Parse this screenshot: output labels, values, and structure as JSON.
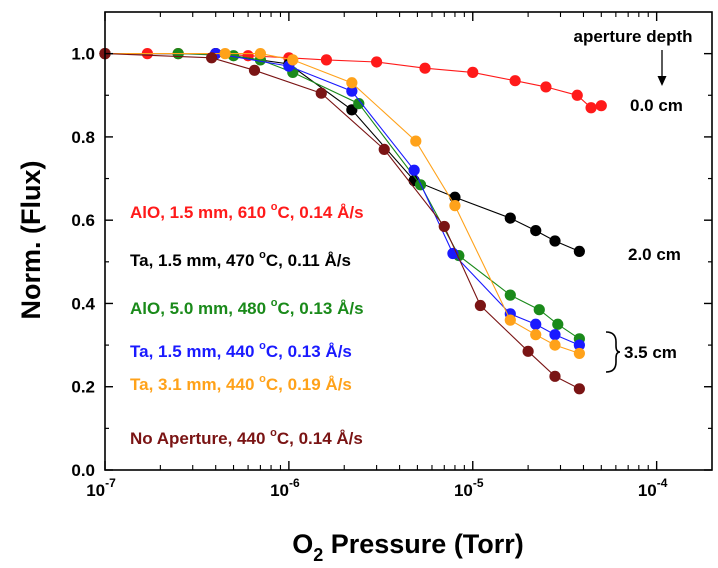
{
  "chart_data": {
    "type": "scatter",
    "x_scale": "log",
    "xlim": [
      1e-07,
      0.0002
    ],
    "ylim": [
      0.0,
      1.1
    ],
    "xlabel_parts": {
      "main": "O",
      "sub": "2",
      "rest": " Pressure (Torr)"
    },
    "ylabel": "Norm. (Flux)",
    "x_ticks": [
      {
        "value": 1e-07,
        "base": "10",
        "exp": "-7"
      },
      {
        "value": 1e-06,
        "base": "10",
        "exp": "-6"
      },
      {
        "value": 1e-05,
        "base": "10",
        "exp": "-5"
      },
      {
        "value": 0.0001,
        "base": "10",
        "exp": "-4"
      }
    ],
    "y_ticks": [
      "0.0",
      "0.2",
      "0.4",
      "0.6",
      "0.8",
      "1.0"
    ],
    "grid": false,
    "legend_placement": "left",
    "series": [
      {
        "label_parts": {
          "pre": "AlO, 1.5 mm, 610 ",
          "sup": "o",
          "post": "C, 0.14 Å/s"
        },
        "color": "#ff1a1a",
        "points": [
          [
            1e-07,
            1.0
          ],
          [
            1.7e-07,
            1.0
          ],
          [
            2.5e-07,
            1.0
          ],
          [
            4e-07,
            1.0
          ],
          [
            6e-07,
            0.995
          ],
          [
            1e-06,
            0.99
          ],
          [
            1.6e-06,
            0.985
          ],
          [
            3e-06,
            0.98
          ],
          [
            5.5e-06,
            0.965
          ],
          [
            1e-05,
            0.955
          ],
          [
            1.7e-05,
            0.935
          ],
          [
            2.5e-05,
            0.92
          ],
          [
            3.7e-05,
            0.9
          ],
          [
            4.4e-05,
            0.87
          ],
          [
            5e-05,
            0.875
          ]
        ]
      },
      {
        "label_parts": {
          "pre": "Ta, 1.5 mm, 470 ",
          "sup": "o",
          "post": "C, 0.11 Å/s"
        },
        "color": "#000000",
        "points": [
          [
            1e-07,
            1.0
          ],
          [
            4e-07,
            1.0
          ],
          [
            1e-06,
            0.975
          ],
          [
            2.2e-06,
            0.865
          ],
          [
            4.8e-06,
            0.695
          ],
          [
            8e-06,
            0.655
          ],
          [
            1.6e-05,
            0.605
          ],
          [
            2.2e-05,
            0.575
          ],
          [
            2.8e-05,
            0.55
          ],
          [
            3.8e-05,
            0.525
          ]
        ]
      },
      {
        "label_parts": {
          "pre": "AlO, 5.0 mm, 480 ",
          "sup": "o",
          "post": "C, 0.13 Å/s"
        },
        "color": "#1a8a1a",
        "points": [
          [
            1e-07,
            1.0
          ],
          [
            2.5e-07,
            1.0
          ],
          [
            5e-07,
            0.995
          ],
          [
            7e-07,
            0.985
          ],
          [
            1.05e-06,
            0.955
          ],
          [
            2.4e-06,
            0.88
          ],
          [
            5.2e-06,
            0.685
          ],
          [
            8.4e-06,
            0.515
          ],
          [
            1.6e-05,
            0.42
          ],
          [
            2.3e-05,
            0.385
          ],
          [
            2.9e-05,
            0.35
          ],
          [
            3.8e-05,
            0.315
          ]
        ]
      },
      {
        "label_parts": {
          "pre": "Ta, 1.5 mm, 440 ",
          "sup": "o",
          "post": "C, 0.13 Å/s"
        },
        "color": "#1a1aff",
        "points": [
          [
            1e-07,
            1.0
          ],
          [
            4e-07,
            1.0
          ],
          [
            1e-06,
            0.97
          ],
          [
            2.2e-06,
            0.91
          ],
          [
            4.8e-06,
            0.72
          ],
          [
            7.8e-06,
            0.52
          ],
          [
            1.6e-05,
            0.375
          ],
          [
            2.2e-05,
            0.35
          ],
          [
            2.8e-05,
            0.325
          ],
          [
            3.8e-05,
            0.3
          ]
        ]
      },
      {
        "label_parts": {
          "pre": "Ta, 3.1 mm, 440 ",
          "sup": "o",
          "post": "C, 0.19 Å/s"
        },
        "color": "#ffa21a",
        "points": [
          [
            1e-07,
            1.0
          ],
          [
            4.5e-07,
            1.0
          ],
          [
            7e-07,
            1.0
          ],
          [
            1.05e-06,
            0.985
          ],
          [
            2.2e-06,
            0.93
          ],
          [
            4.9e-06,
            0.79
          ],
          [
            8e-06,
            0.635
          ],
          [
            1.6e-05,
            0.36
          ],
          [
            2.2e-05,
            0.325
          ],
          [
            2.8e-05,
            0.3
          ],
          [
            3.8e-05,
            0.28
          ]
        ]
      },
      {
        "label_parts": {
          "pre": "No Aperture, 440 ",
          "sup": "o",
          "post": "C, 0.14 Å/s"
        },
        "color": "#7a1414",
        "points": [
          [
            1e-07,
            1.0
          ],
          [
            3.8e-07,
            0.99
          ],
          [
            6.5e-07,
            0.96
          ],
          [
            1.5e-06,
            0.905
          ],
          [
            3.3e-06,
            0.77
          ],
          [
            7e-06,
            0.585
          ],
          [
            1.1e-05,
            0.395
          ],
          [
            2e-05,
            0.285
          ],
          [
            2.8e-05,
            0.225
          ],
          [
            3.8e-05,
            0.195
          ]
        ]
      }
    ],
    "annotations": {
      "aperture_header": "aperture depth",
      "depth_00": "0.0 cm",
      "depth_20": "2.0 cm",
      "depth_35": "3.5 cm"
    }
  }
}
